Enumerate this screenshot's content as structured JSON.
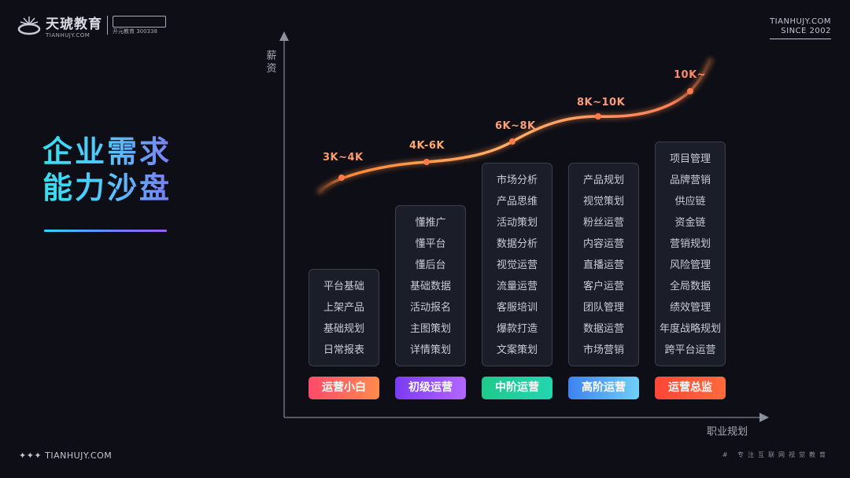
{
  "header": {
    "brand_cn": "天琥教育",
    "brand_en": "TIANHUJY.COM",
    "brand_sub": "开元教育 300338",
    "site": "TIANHUJY.COM",
    "since": "SINCE 2002"
  },
  "title": {
    "line1": "企业需求",
    "line2": "能力沙盘"
  },
  "axes": {
    "y_label": "薪资",
    "x_label": "职业规划"
  },
  "stages": [
    {
      "name": "运营小白",
      "salary": "3K~4K",
      "skills": [
        "平台基础",
        "上架产品",
        "基础规划",
        "日常报表"
      ],
      "color_start": "#ff4a6b",
      "color_end": "#ff8a4c",
      "salary_color": "#ff9a6a"
    },
    {
      "name": "初级运营",
      "salary": "4K-6K",
      "skills": [
        "懂推广",
        "懂平台",
        "懂后台",
        "基础数据",
        "活动报名",
        "主图策划",
        "详情策划"
      ],
      "color_start": "#7a3cf2",
      "color_end": "#b466ff",
      "salary_color": "#ffaa6e"
    },
    {
      "name": "中阶运营",
      "salary": "6K~8K",
      "skills": [
        "市场分析",
        "产品思维",
        "活动策划",
        "数据分析",
        "视觉运营",
        "流量运营",
        "客服培训",
        "爆款打造",
        "文案策划"
      ],
      "color_start": "#1fc98a",
      "color_end": "#22d6b0",
      "salary_color": "#ff9f74"
    },
    {
      "name": "高阶运营",
      "salary": "8K~10K",
      "skills": [
        "产品规划",
        "视觉策划",
        "粉丝运营",
        "内容运营",
        "直播运营",
        "客户运营",
        "团队管理",
        "数据运营",
        "市场营销"
      ],
      "color_start": "#3d82f0",
      "color_end": "#6fd0f6",
      "salary_color": "#ff9a7a"
    },
    {
      "name": "运营总监",
      "salary": "10K~",
      "skills": [
        "项目管理",
        "品牌营销",
        "供应链",
        "资金链",
        "营销规划",
        "风险管理",
        "全局数据",
        "绩效管理",
        "年度战略规划",
        "跨平台运营"
      ],
      "color_start": "#ff4636",
      "color_end": "#ff6a3c",
      "salary_color": "#ff8a6a"
    }
  ],
  "footer": {
    "left": "✦✦✦ TIANHUJY.COM",
    "right": "# 专注互联网视觉教育"
  }
}
